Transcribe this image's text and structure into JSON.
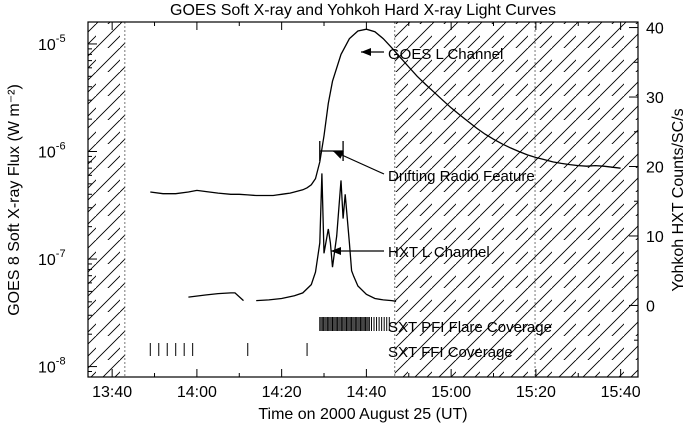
{
  "chart_data": {
    "type": "line",
    "title": "GOES Soft X-ray and Yohkoh Hard X-ray Light Curves",
    "xlabel": "Time on 2000 August 25 (UT)",
    "ylabel_left": "GOES 8 Soft X-ray Flux (W m⁻²)",
    "ylabel_right": "Yohkoh HXT Counts/SC/s",
    "x_ticks": [
      "13:40",
      "14:00",
      "14:20",
      "14:40",
      "15:00",
      "15:20",
      "15:40"
    ],
    "y_left_ticks": [
      {
        "base": "10",
        "exp": "-8"
      },
      {
        "base": "10",
        "exp": "-7"
      },
      {
        "base": "10",
        "exp": "-6"
      },
      {
        "base": "10",
        "exp": "-5"
      }
    ],
    "y_left_scale": "log",
    "y_left_range": [
      8e-09,
      1.6e-05
    ],
    "y_right_ticks": [
      "0",
      "10",
      "20",
      "30",
      "40"
    ],
    "y_right_range": [
      -10.3,
      40.8
    ],
    "x_range_minutes": [
      -5.7,
      124.1
    ],
    "series": [
      {
        "name": "GOES L Channel",
        "axis": "left",
        "x_minutes": [
          9,
          12,
          15,
          18,
          20,
          22,
          25,
          28,
          30,
          32,
          34,
          36,
          37,
          38,
          39,
          40,
          41,
          42,
          43,
          44,
          45,
          46,
          47,
          48,
          49,
          50,
          51,
          52,
          54,
          56,
          58,
          60,
          62,
          64,
          66,
          68,
          70,
          72,
          74,
          76,
          78,
          80,
          82,
          84,
          86,
          88,
          90,
          92,
          94,
          96,
          98,
          100,
          102,
          104,
          106,
          108,
          110,
          112,
          114,
          116,
          118,
          120
        ],
        "values": [
          4.2e-07,
          4.05e-07,
          4.05e-07,
          4.2e-07,
          4.35e-07,
          4.25e-07,
          4.1e-07,
          4e-07,
          4e-07,
          3.95e-07,
          3.9e-07,
          3.9e-07,
          3.9e-07,
          3.9e-07,
          3.95e-07,
          4e-07,
          4.05e-07,
          4.1e-07,
          4.2e-07,
          4.3e-07,
          4.4e-07,
          4.6e-07,
          4.9e-07,
          5.6e-07,
          8e-07,
          1.4e-06,
          2.8e-06,
          4.5e-06,
          8e-06,
          1.12e-05,
          1.32e-05,
          1.37e-05,
          1.3e-05,
          1.12e-05,
          9.2e-06,
          7.5e-06,
          6.1e-06,
          5e-06,
          4.2e-06,
          3.55e-06,
          3e-06,
          2.55e-06,
          2.2e-06,
          1.9e-06,
          1.65e-06,
          1.45e-06,
          1.3e-06,
          1.18e-06,
          1.08e-06,
          1e-06,
          9.3e-07,
          8.8e-07,
          8.4e-07,
          8e-07,
          7.75e-07,
          7.55e-07,
          7.4e-07,
          7.3e-07,
          7.4e-07,
          7.3e-07,
          7.15e-07,
          7e-07
        ]
      },
      {
        "name": "HXT L Channel",
        "axis": "right",
        "x_minutes": [
          18,
          22,
          25,
          28,
          29,
          31,
          34,
          37,
          40,
          43,
          45,
          47,
          48,
          49,
          49.5,
          50,
          51,
          51.5,
          52,
          53,
          54,
          54.5,
          55,
          56,
          56.5,
          57,
          58,
          60,
          62,
          64,
          66,
          67
        ],
        "values": [
          1.2,
          1.5,
          1.7,
          1.8,
          1.8,
          0.7,
          0.7,
          0.8,
          1.0,
          1.4,
          1.8,
          3.0,
          4.8,
          9.0,
          19.0,
          7.5,
          11.0,
          9.0,
          5.5,
          10.0,
          18.0,
          12.5,
          16.0,
          9.0,
          5.0,
          4.2,
          2.8,
          1.6,
          1.0,
          0.8,
          0.7,
          0.6
        ]
      }
    ],
    "annotations": {
      "goes_label": "GOES L Channel",
      "radio_label": "Drifting Radio Feature",
      "hxt_label": "HXT L Channel",
      "pfi_label": "SXT PFI Flare Coverage",
      "ffi_label": "SXT FFI Coverage"
    },
    "drifting_radio_feature_minutes": [
      49,
      54.5
    ],
    "sxt_pfi_times_minutes": [
      49,
      49.3,
      49.6,
      49.9,
      50.2,
      50.5,
      50.8,
      51.1,
      51.4,
      51.7,
      52,
      52.3,
      52.6,
      52.9,
      53.2,
      53.5,
      53.8,
      54.1,
      54.4,
      54.7,
      55,
      55.3,
      55.6,
      55.9,
      56.2,
      56.5,
      56.8,
      57.1,
      57.4,
      57.7,
      58,
      58.3,
      58.6,
      58.9,
      59.2,
      59.5,
      59.8,
      60.1,
      60.4,
      60.7,
      61.2,
      61.8,
      62.4,
      63.0,
      63.6,
      64.2,
      64.8,
      65.4
    ],
    "sxt_ffi_times_minutes": [
      9,
      11,
      13,
      15,
      17,
      19,
      32,
      46
    ],
    "shaded_intervals_minutes": [
      [
        -5.7,
        3
      ],
      [
        66.7,
        124.1
      ]
    ],
    "dashed_boundaries_minutes": [
      3,
      66.7,
      99.8
    ]
  }
}
